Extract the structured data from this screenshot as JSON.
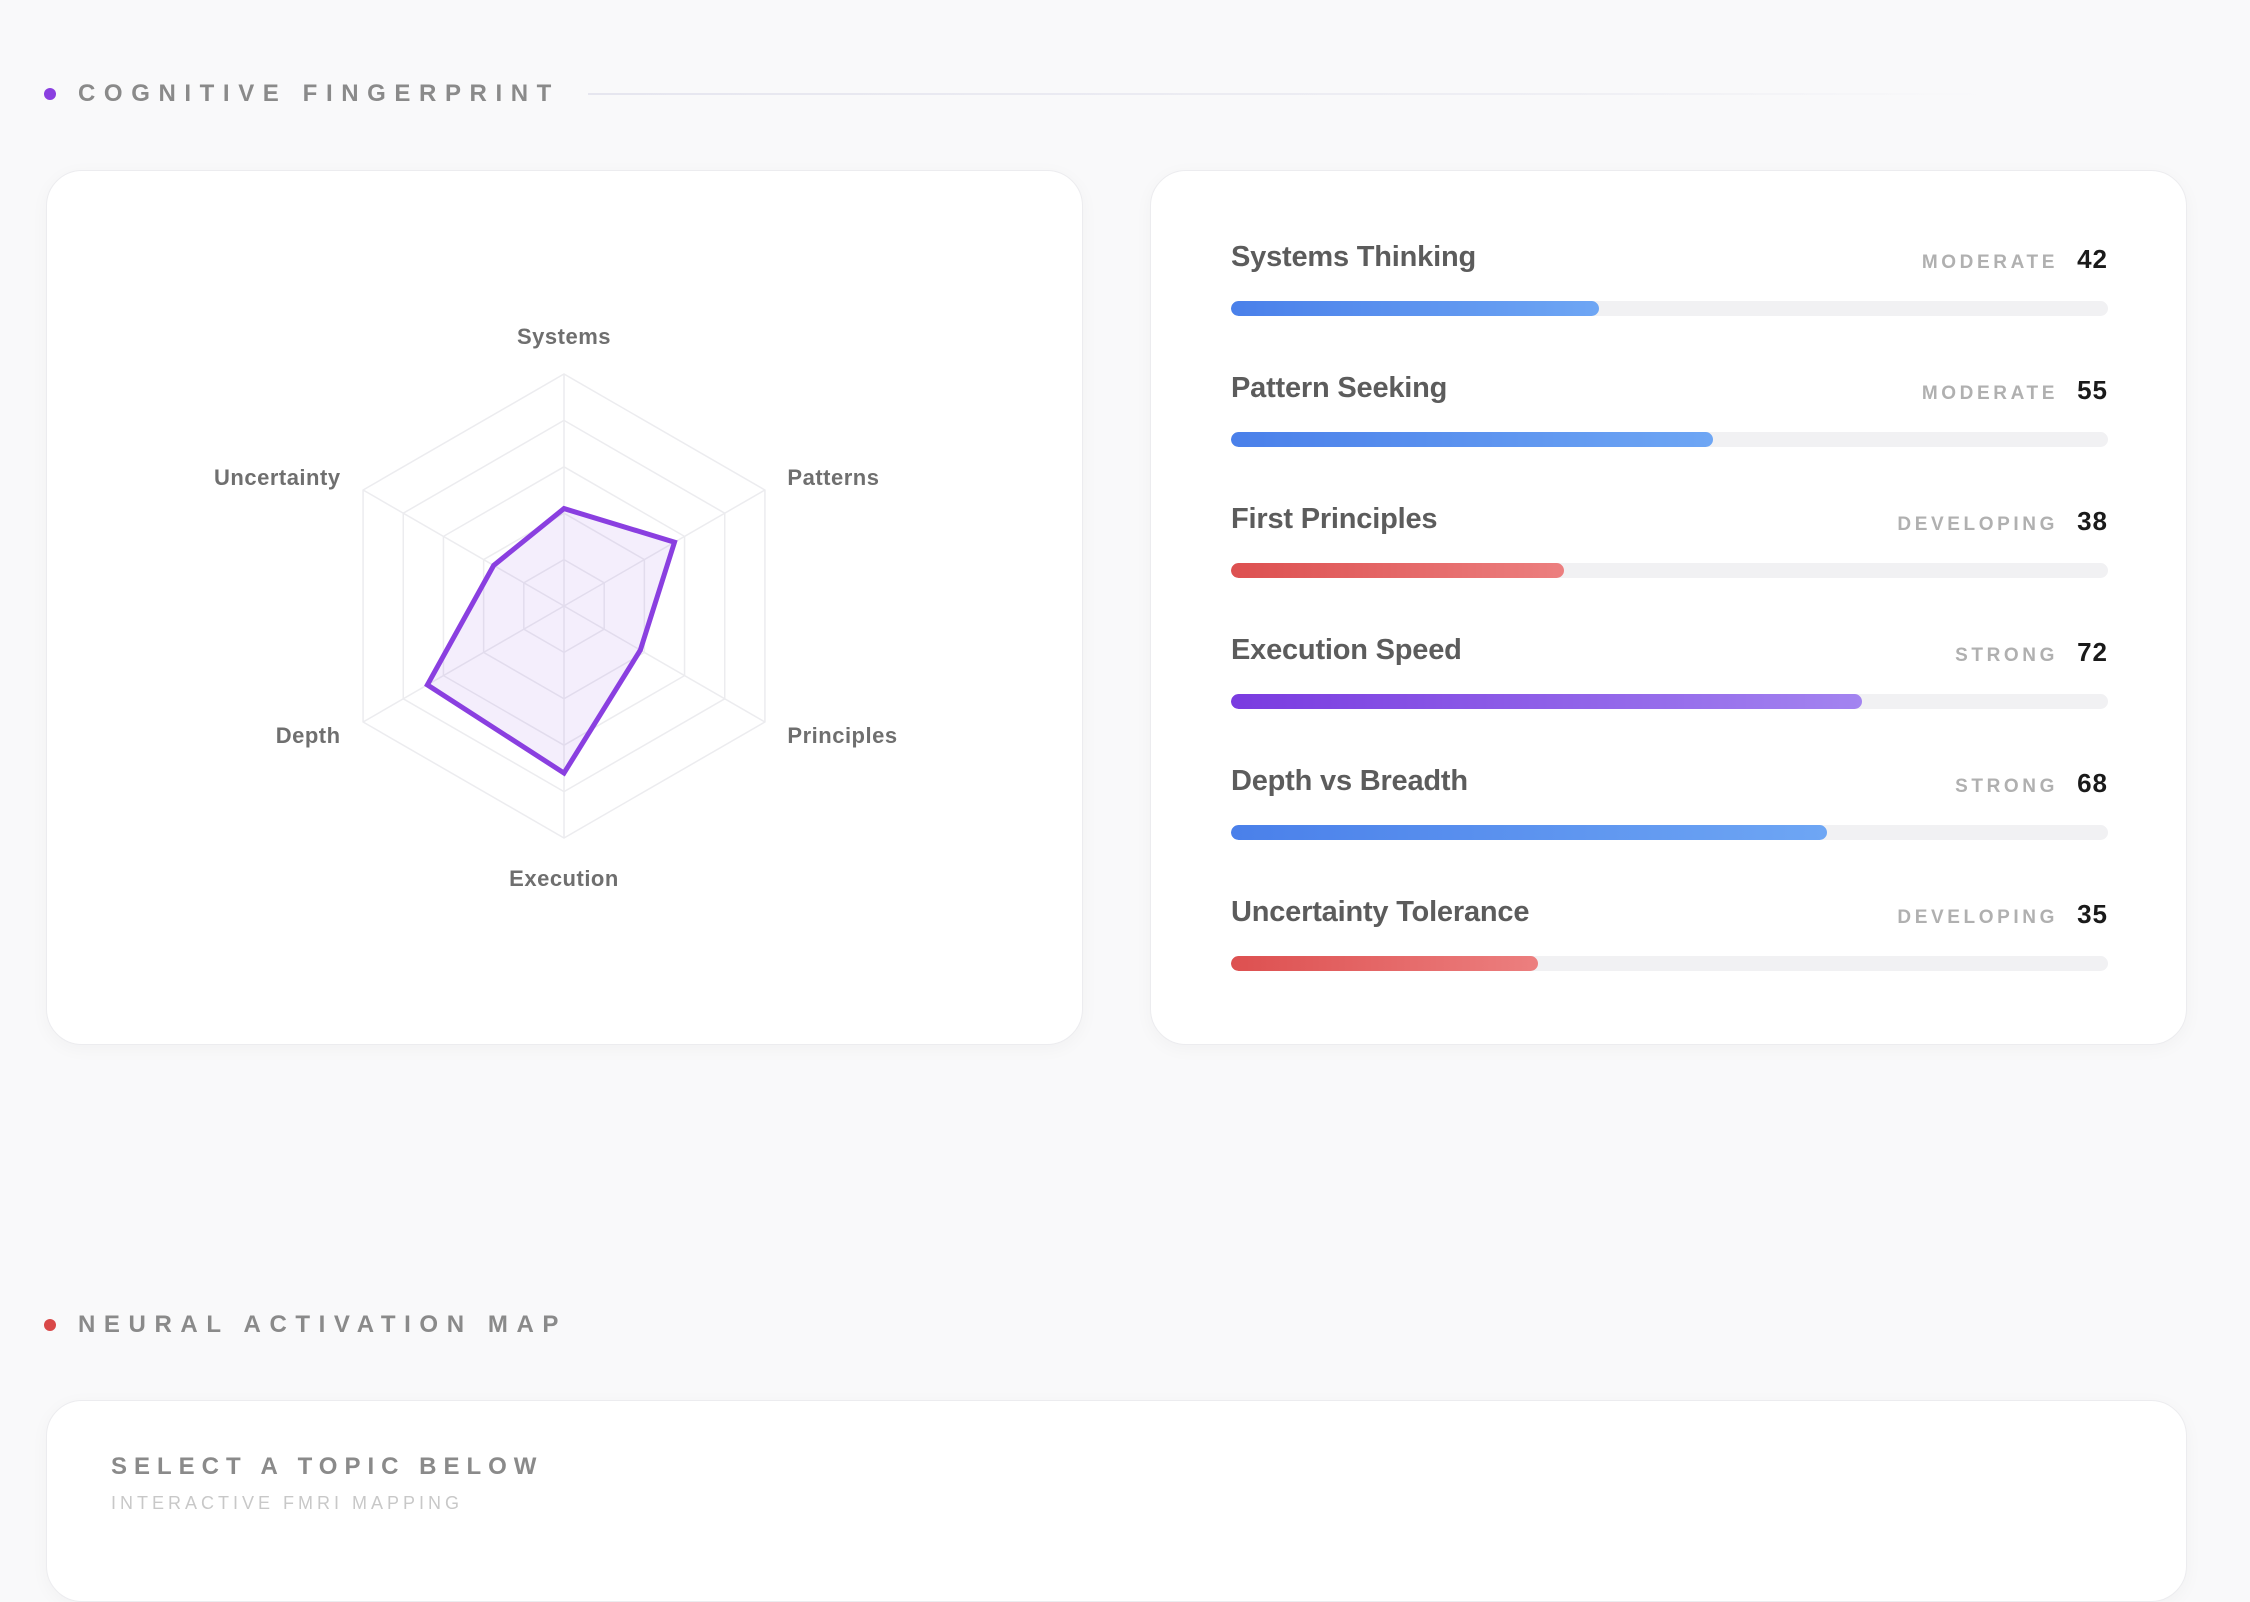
{
  "sections": {
    "fingerprint": {
      "title": "COGNITIVE FINGERPRINT",
      "dot_color": "#8a3fe0"
    },
    "neural": {
      "title": "NEURAL ACTIVATION MAP",
      "dot_color": "#d94848"
    }
  },
  "radar": {
    "labels": [
      "Systems",
      "Patterns",
      "Principles",
      "Execution",
      "Depth",
      "Uncertainty"
    ],
    "values": [
      42,
      55,
      38,
      72,
      68,
      35
    ],
    "max": 100,
    "rings": 5,
    "stroke_color": "#8a3fe0"
  },
  "metrics": [
    {
      "name": "Systems Thinking",
      "level": "MODERATE",
      "score": "42",
      "value": 42,
      "style": "moderate"
    },
    {
      "name": "Pattern Seeking",
      "level": "MODERATE",
      "score": "55",
      "value": 55,
      "style": "moderate"
    },
    {
      "name": "First Principles",
      "level": "DEVELOPING",
      "score": "38",
      "value": 38,
      "style": "developing"
    },
    {
      "name": "Execution Speed",
      "level": "STRONG",
      "score": "72",
      "value": 72,
      "style": "strong-purple"
    },
    {
      "name": "Depth vs Breadth",
      "level": "STRONG",
      "score": "68",
      "value": 68,
      "style": "strong-blue"
    },
    {
      "name": "Uncertainty Tolerance",
      "level": "DEVELOPING",
      "score": "35",
      "value": 35,
      "style": "developing"
    }
  ],
  "neural_card": {
    "title": "SELECT A TOPIC BELOW",
    "subtitle": "INTERACTIVE FMRI MAPPING"
  }
}
